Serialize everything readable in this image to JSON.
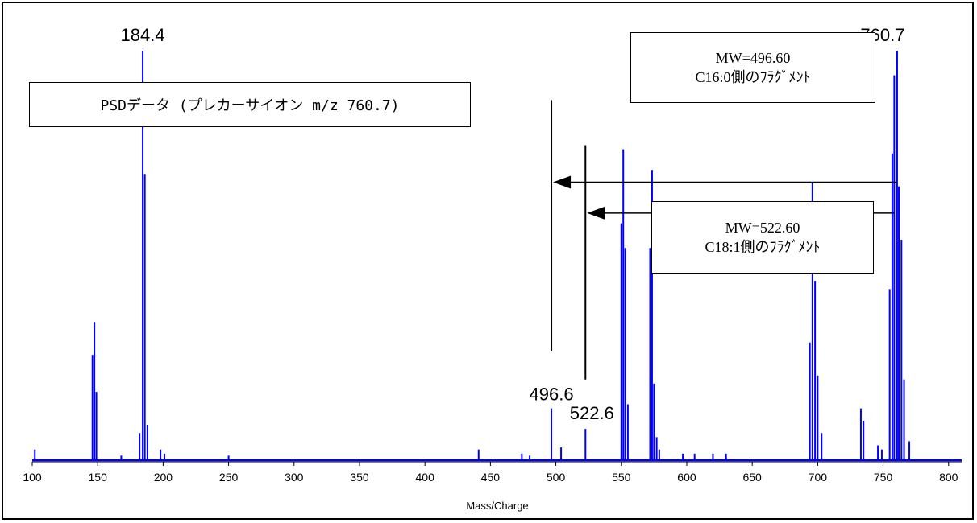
{
  "chart_data": {
    "type": "line",
    "title": "PSDデータ (プレカーサイオン m/z 760.7)",
    "xlabel": "Mass/Charge",
    "ylabel": "",
    "xlim": [
      100,
      810
    ],
    "ylim": [
      0,
      100
    ],
    "xticks": [
      100,
      150,
      200,
      250,
      300,
      350,
      400,
      450,
      500,
      550,
      600,
      650,
      700,
      750,
      800
    ],
    "grid": false,
    "series": [
      {
        "color": "#0000ff",
        "peaks": [
          [
            102,
            3
          ],
          [
            146,
            26
          ],
          [
            147.5,
            34
          ],
          [
            149,
            17
          ],
          [
            168,
            1.5
          ],
          [
            182,
            7
          ],
          [
            184.4,
            100
          ],
          [
            186,
            70
          ],
          [
            188,
            9
          ],
          [
            198,
            3
          ],
          [
            201,
            2
          ],
          [
            250,
            1.5
          ],
          [
            441,
            3
          ],
          [
            474,
            2
          ],
          [
            480,
            1.5
          ],
          [
            496.6,
            13
          ],
          [
            504,
            3.5
          ],
          [
            522.6,
            8
          ],
          [
            550,
            58
          ],
          [
            551.5,
            76
          ],
          [
            553,
            52
          ],
          [
            555,
            14
          ],
          [
            572,
            52
          ],
          [
            573.5,
            71
          ],
          [
            575,
            19
          ],
          [
            577,
            6
          ],
          [
            579,
            3
          ],
          [
            597,
            2
          ],
          [
            606,
            2
          ],
          [
            620,
            2
          ],
          [
            630,
            2
          ],
          [
            694,
            29
          ],
          [
            696,
            68
          ],
          [
            698,
            44
          ],
          [
            700,
            21
          ],
          [
            703,
            7
          ],
          [
            733,
            13
          ],
          [
            735,
            10
          ],
          [
            746,
            4
          ],
          [
            749,
            3
          ],
          [
            755,
            42
          ],
          [
            757,
            75
          ],
          [
            758.5,
            94
          ],
          [
            760.7,
            100
          ],
          [
            762,
            67
          ],
          [
            764,
            54
          ],
          [
            766,
            20
          ],
          [
            770,
            5
          ]
        ]
      }
    ],
    "annotations": [
      {
        "label": "184.4",
        "x": 184.4
      },
      {
        "label": "760.7",
        "x": 760.7
      },
      {
        "label": "496.6",
        "x": 496.6
      },
      {
        "label": "522.6",
        "x": 522.6
      }
    ],
    "marker_lines": [
      {
        "x": 496.6,
        "from_y": 88,
        "to_y": 27
      },
      {
        "x": 522.6,
        "from_y": 77,
        "to_y": 20
      }
    ],
    "arrows": [
      {
        "from_x": 760.7,
        "to_x": 496.6,
        "y": 68
      },
      {
        "from_x": 758.5,
        "to_x": 522.6,
        "y": 60.5
      }
    ]
  },
  "title_box": {
    "text": "PSDデータ (プレカーサイオン m/z 760.7)"
  },
  "fragment_boxes": [
    {
      "line1": "MW=496.60",
      "line2": "C16:0側のﾌﾗｸﾞﾒﾝﾄ"
    },
    {
      "line1": "MW=522.60",
      "line2": "C18:1側のﾌﾗｸﾞﾒﾝﾄ"
    }
  ]
}
